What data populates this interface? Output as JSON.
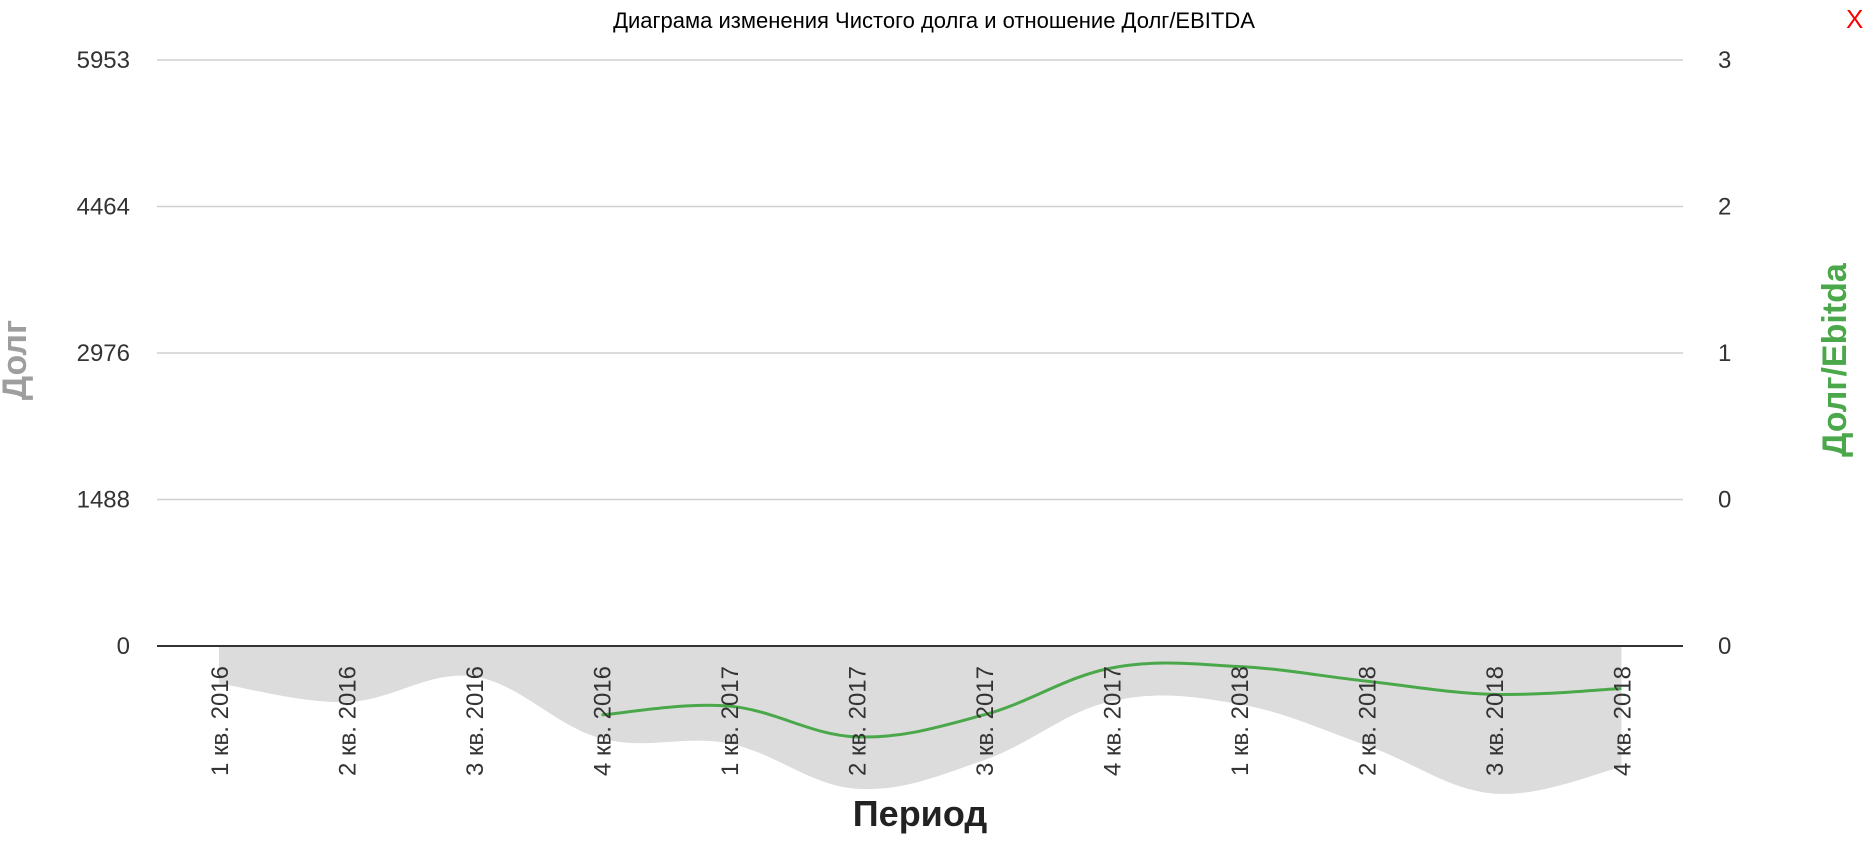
{
  "close_label": "X",
  "colors": {
    "debt_area": "#dcdcdc",
    "ratio_line": "#4aa84a",
    "left_axis_title": "#9e9e9e",
    "right_axis_title": "#4aa84a",
    "close": "#ff0000",
    "grid": "#d0d0d0",
    "zero_line": "#333333"
  },
  "chart_data": {
    "type": "area",
    "title": "Диаграма изменения Чистого долга и отношение Долг/EBITDA",
    "xlabel": "Период",
    "ylabel": "Долг",
    "y2label": "Долг/Ebitda",
    "categories": [
      "1 кв. 2016",
      "2 кв. 2016",
      "3 кв. 2016",
      "4 кв. 2016",
      "1 кв. 2017",
      "2 кв. 2017",
      "3 кв. 2017",
      "4 кв. 2017",
      "1 кв. 2018",
      "2 кв. 2018",
      "3 кв. 2018",
      "4 кв. 2018"
    ],
    "left_axis": {
      "ticks": [
        "0",
        "1488",
        "2976",
        "4464",
        "5953"
      ],
      "ylim": [
        0,
        5953
      ]
    },
    "right_axis": {
      "ticks": [
        "0",
        "0",
        "1",
        "2",
        "3"
      ]
    },
    "series": [
      {
        "type": "area",
        "values": [
          -380,
          -570,
          -310,
          -940,
          -990,
          -1450,
          -1160,
          -560,
          -590,
          -1010,
          -1500,
          -1230
        ]
      },
      {
        "type": "line",
        "values": [
          null,
          null,
          null,
          -0.47,
          -0.41,
          -0.62,
          -0.47,
          -0.15,
          -0.14,
          -0.24,
          -0.33,
          -0.29
        ]
      }
    ],
    "grid": true,
    "legend": "none"
  }
}
